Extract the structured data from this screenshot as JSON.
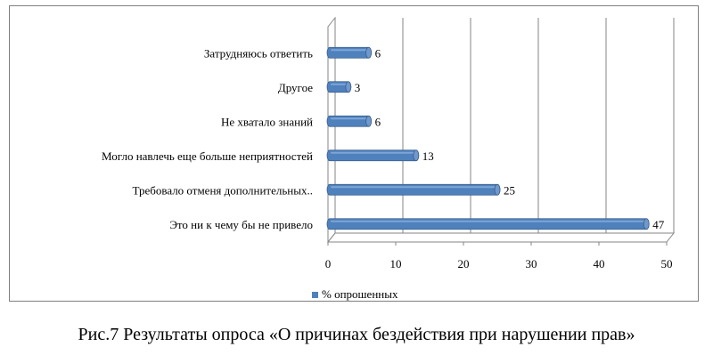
{
  "chart_data": {
    "type": "bar",
    "orientation": "horizontal",
    "style": "3d-cylinder",
    "categories": [
      "Затрудняюсь ответить",
      "Другое",
      "Не хватало знаний",
      "Могло навлечь еще больше неприятностей",
      "Требовало отменя дополнительных..",
      "Это ни к чему бы не привело"
    ],
    "series": [
      {
        "name": "% опрошенных",
        "values": [
          6,
          3,
          6,
          13,
          25,
          47
        ],
        "color": "#4f81bd"
      }
    ],
    "xlim": [
      0,
      50
    ],
    "xticks": [
      "0",
      "10",
      "20",
      "30",
      "40",
      "50"
    ],
    "grid": "vertical",
    "legend": "bottom"
  },
  "caption": "Рис.7 Результаты опроса  «О причинах бездействия при нарушении прав»"
}
